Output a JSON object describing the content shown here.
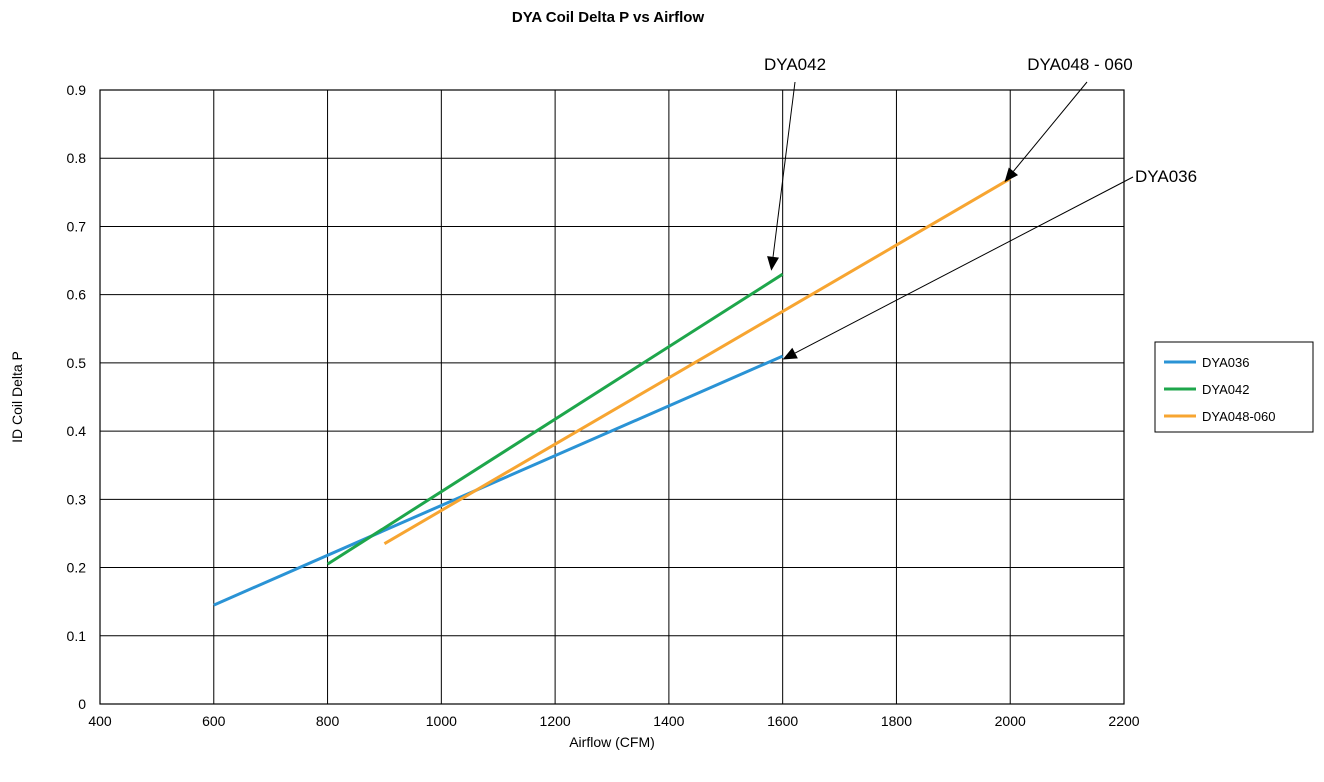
{
  "chart_data": {
    "type": "line",
    "title": "DYA Coil Delta P vs Airflow",
    "xlabel": "Airflow (CFM)",
    "ylabel": "ID Coil Delta P",
    "xlim": [
      400,
      2200
    ],
    "ylim": [
      0,
      0.9
    ],
    "x_ticks": [
      400,
      600,
      800,
      1000,
      1200,
      1400,
      1600,
      1800,
      2000,
      2200
    ],
    "x_tick_labels": [
      "400",
      "600",
      "800",
      "1000",
      "1200",
      "1400",
      "1600",
      "1800",
      "2000",
      "2200"
    ],
    "y_ticks": [
      0,
      0.1,
      0.2,
      0.3,
      0.4,
      0.5,
      0.6,
      0.7,
      0.8,
      0.9
    ],
    "y_tick_labels": [
      "0",
      "0.1",
      "0.2",
      "0.3",
      "0.4",
      "0.5",
      "0.6",
      "0.7",
      "0.8",
      "0.9"
    ],
    "grid": true,
    "legend_position": "right",
    "series": [
      {
        "name": "DYA036",
        "color": "#2a93d5",
        "x": [
          600,
          1600
        ],
        "y": [
          0.145,
          0.51
        ]
      },
      {
        "name": "DYA042",
        "color": "#1ea64b",
        "x": [
          800,
          1600
        ],
        "y": [
          0.205,
          0.63
        ]
      },
      {
        "name": "DYA048-060",
        "color": "#f7a531",
        "x": [
          900,
          2000
        ],
        "y": [
          0.235,
          0.77
        ]
      }
    ],
    "annotations": [
      {
        "text": "DYA042",
        "target": [
          1580,
          0.635
        ]
      },
      {
        "text": "DYA048 - 060",
        "target": [
          1990,
          0.765
        ]
      },
      {
        "text": "DYA036",
        "target": [
          1600,
          0.505
        ]
      }
    ]
  }
}
